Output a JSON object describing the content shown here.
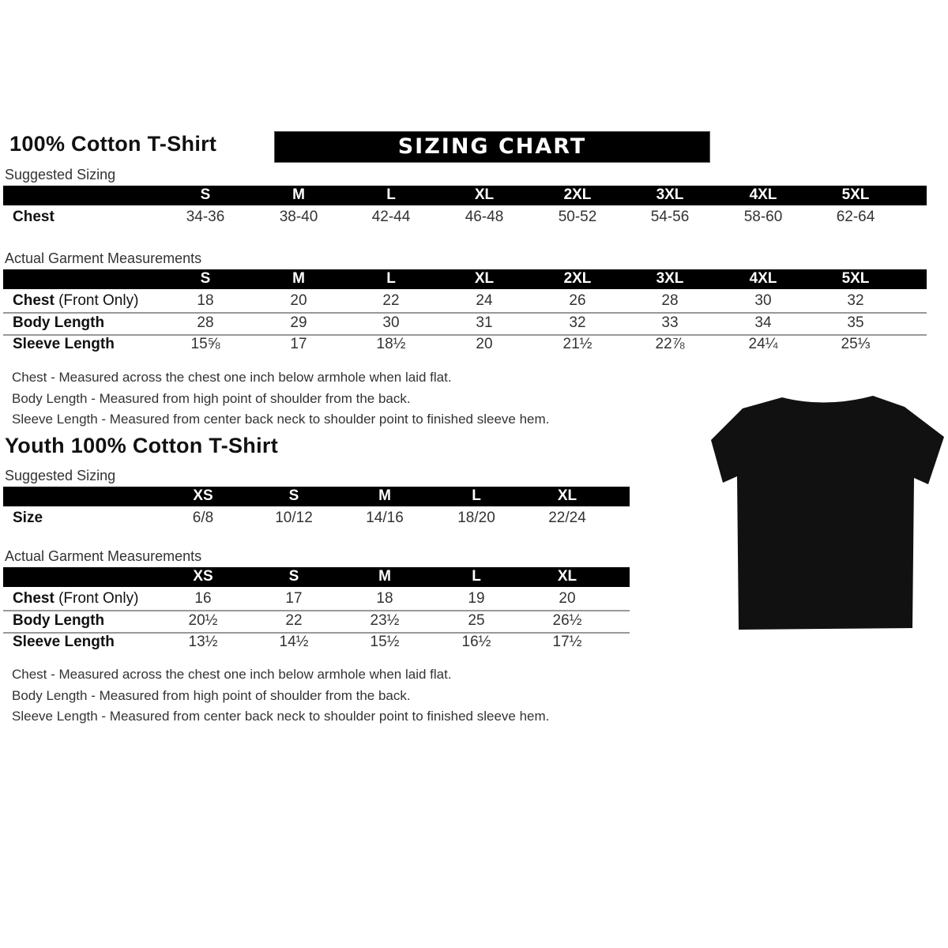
{
  "adult": {
    "title": "100% Cotton T-Shirt",
    "banner": "SIZING CHART",
    "suggested": {
      "label": "Suggested Sizing",
      "sizes": [
        "S",
        "M",
        "L",
        "XL",
        "2XL",
        "3XL",
        "4XL",
        "5XL"
      ],
      "rows": [
        {
          "name": "Chest",
          "extra": "",
          "values": [
            "34-36",
            "38-40",
            "42-44",
            "46-48",
            "50-52",
            "54-56",
            "58-60",
            "62-64"
          ]
        }
      ]
    },
    "actual": {
      "label": "Actual Garment Measurements",
      "sizes": [
        "S",
        "M",
        "L",
        "XL",
        "2XL",
        "3XL",
        "4XL",
        "5XL"
      ],
      "rows": [
        {
          "name": "Chest",
          "extra": " (Front Only)",
          "values": [
            "18",
            "20",
            "22",
            "24",
            "26",
            "28",
            "30",
            "32"
          ]
        },
        {
          "name": "Body Length",
          "extra": "",
          "values": [
            "28",
            "29",
            "30",
            "31",
            "32",
            "33",
            "34",
            "35"
          ]
        },
        {
          "name": "Sleeve Length",
          "extra": "",
          "values": [
            "15⅝",
            "17",
            "18½",
            "20",
            "21½",
            "22⅞",
            "24¼",
            "25⅓"
          ]
        }
      ]
    },
    "notes": [
      "Chest - Measured across the chest one inch below armhole when laid flat.",
      "Body Length - Measured from high point of shoulder from the back.",
      "Sleeve Length - Measured from center back neck to shoulder point to finished sleeve hem."
    ]
  },
  "youth": {
    "title": "Youth 100% Cotton T-Shirt",
    "suggested": {
      "label": "Suggested Sizing",
      "sizes": [
        "XS",
        "S",
        "M",
        "L",
        "XL"
      ],
      "rows": [
        {
          "name": "Size",
          "extra": "",
          "values": [
            "6/8",
            "10/12",
            "14/16",
            "18/20",
            "22/24"
          ]
        }
      ]
    },
    "actual": {
      "label": "Actual Garment Measurements",
      "sizes": [
        "XS",
        "S",
        "M",
        "L",
        "XL"
      ],
      "rows": [
        {
          "name": "Chest",
          "extra": " (Front Only)",
          "values": [
            "16",
            "17",
            "18",
            "19",
            "20"
          ]
        },
        {
          "name": "Body Length",
          "extra": "",
          "values": [
            "20½",
            "22",
            "23½",
            "25",
            "26½"
          ]
        },
        {
          "name": "Sleeve Length",
          "extra": "",
          "values": [
            "13½",
            "14½",
            "15½",
            "16½",
            "17½"
          ]
        }
      ]
    },
    "notes": [
      "Chest - Measured across the chest one inch below armhole when laid flat.",
      "Body Length - Measured from high point of shoulder from the back.",
      "Sleeve Length - Measured from center back neck to shoulder point to finished sleeve hem."
    ]
  },
  "image": {
    "icon": "black-tshirt-icon",
    "color": "#111111"
  }
}
